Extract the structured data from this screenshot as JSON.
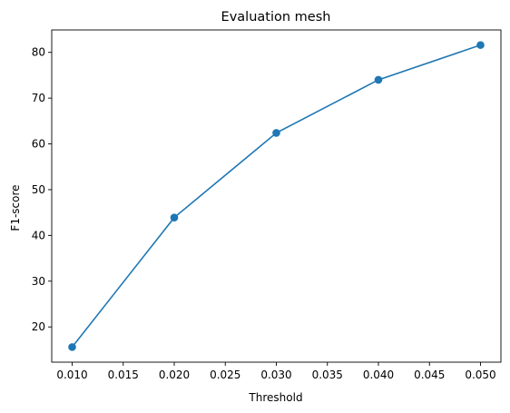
{
  "chart_data": {
    "type": "line",
    "title": "Evaluation mesh",
    "xlabel": "Threshold",
    "ylabel": "F1-score",
    "x": [
      0.01,
      0.02,
      0.03,
      0.04,
      0.05
    ],
    "series": [
      {
        "values": [
          15.6,
          43.9,
          62.4,
          74.0,
          81.6
        ]
      }
    ],
    "xlim": [
      0.008,
      0.052
    ],
    "ylim": [
      12.3,
      84.9
    ],
    "xticks": [
      0.01,
      0.015,
      0.02,
      0.025,
      0.03,
      0.035,
      0.04,
      0.045,
      0.05
    ],
    "xtick_labels": [
      "0.010",
      "0.015",
      "0.020",
      "0.025",
      "0.030",
      "0.035",
      "0.040",
      "0.045",
      "0.050"
    ],
    "yticks": [
      20,
      30,
      40,
      50,
      60,
      70,
      80
    ],
    "ytick_labels": [
      "20",
      "30",
      "40",
      "50",
      "60",
      "70",
      "80"
    ],
    "grid": false,
    "line_color": "#1f77b4",
    "marker": "circle"
  }
}
